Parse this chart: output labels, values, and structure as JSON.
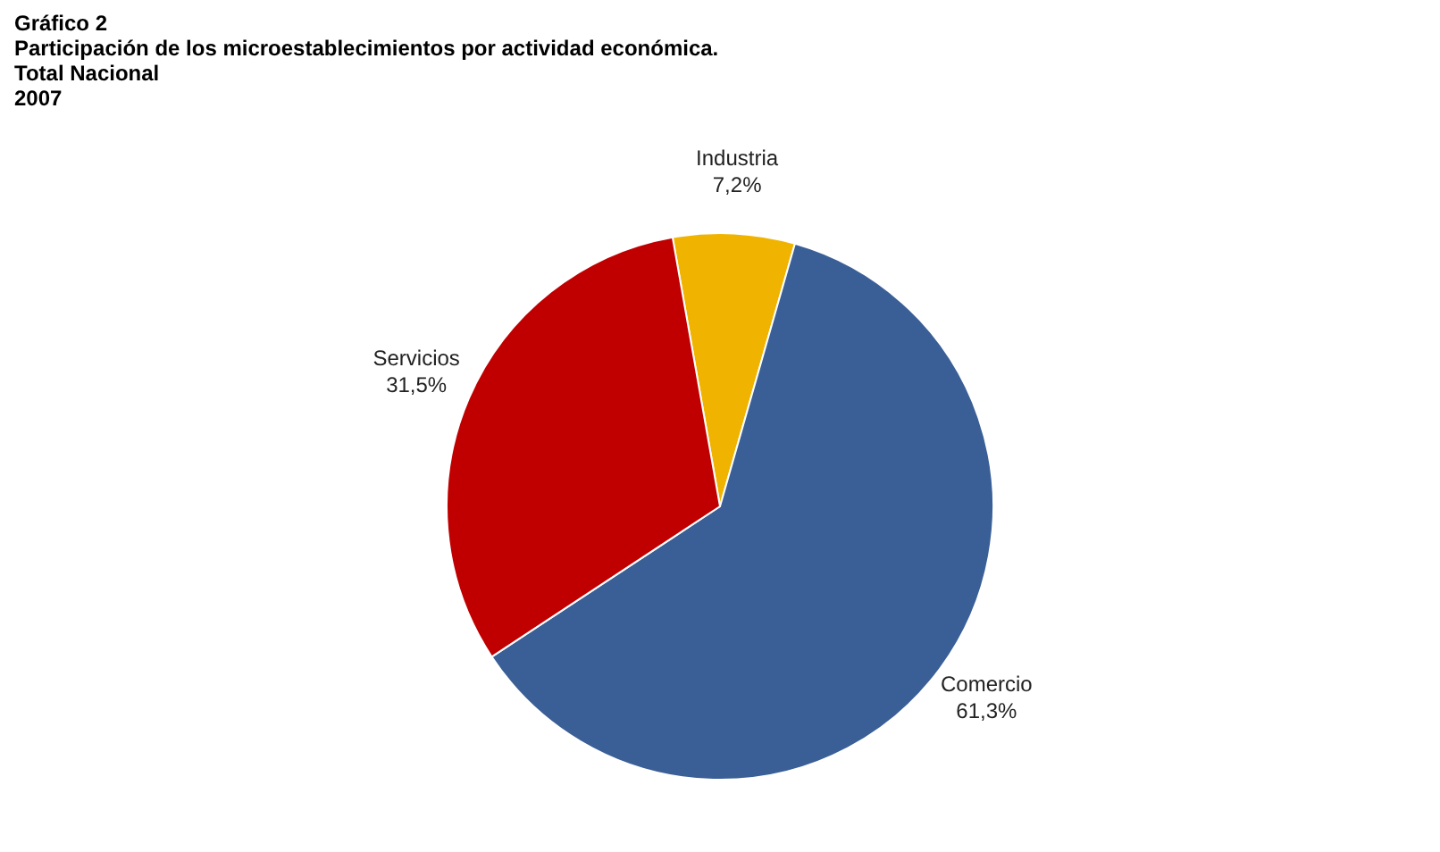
{
  "chart_data": {
    "type": "pie",
    "title": "Gráfico 2\nParticipación de los microestablecimientos por actividad económica.\nTotal Nacional\n2007",
    "categories": [
      "Industria",
      "Comercio",
      "Servicios"
    ],
    "values": [
      7.2,
      61.3,
      31.5
    ],
    "value_labels": [
      "7,2%",
      "61,3%",
      "31,5%"
    ],
    "colors": [
      "#f0b400",
      "#3a5f96",
      "#c00000"
    ],
    "legend": false
  }
}
